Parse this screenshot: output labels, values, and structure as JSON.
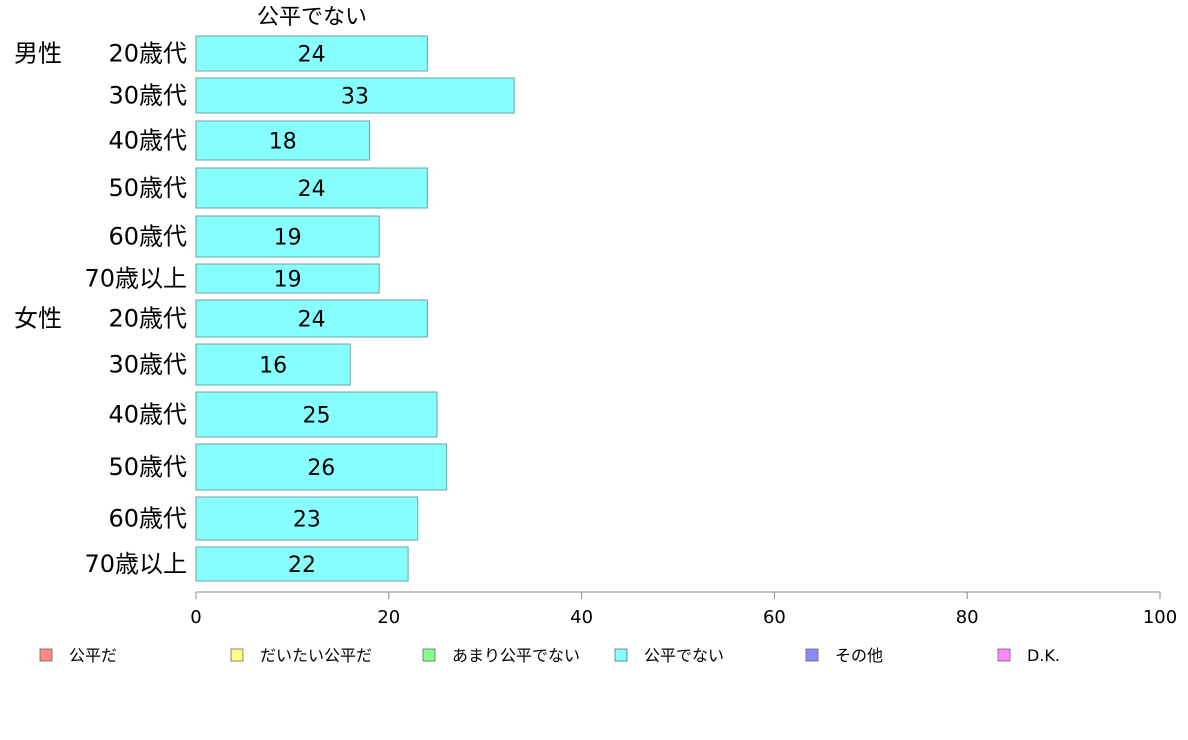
{
  "chart_data": {
    "type": "bar",
    "orientation": "horizontal",
    "title": "公平でない",
    "groups": [
      {
        "label": "男性",
        "start_index": 0
      },
      {
        "label": "女性",
        "start_index": 6
      }
    ],
    "categories": [
      "20歳代",
      "30歳代",
      "40歳代",
      "50歳代",
      "60歳代",
      "70歳以上",
      "20歳代",
      "30歳代",
      "40歳代",
      "50歳代",
      "60歳代",
      "70歳以上"
    ],
    "series": [
      {
        "name": "公平でない",
        "color": "#88ffff",
        "values": [
          24,
          33,
          18,
          24,
          19,
          19,
          24,
          16,
          25,
          26,
          23,
          22
        ]
      }
    ],
    "xlim": [
      0,
      100
    ],
    "x_ticks": [
      0,
      20,
      40,
      60,
      80,
      100
    ],
    "grid": false,
    "legend_position": "bottom",
    "legend": [
      {
        "label": "公平だ",
        "color": "#ff8888"
      },
      {
        "label": "だいたい公平だ",
        "color": "#ffff88"
      },
      {
        "label": "あまり公平でない",
        "color": "#88ff88"
      },
      {
        "label": "公平でない",
        "color": "#88ffff"
      },
      {
        "label": "その他",
        "color": "#8888ff"
      },
      {
        "label": "D.K.",
        "color": "#ff88ff"
      }
    ]
  }
}
